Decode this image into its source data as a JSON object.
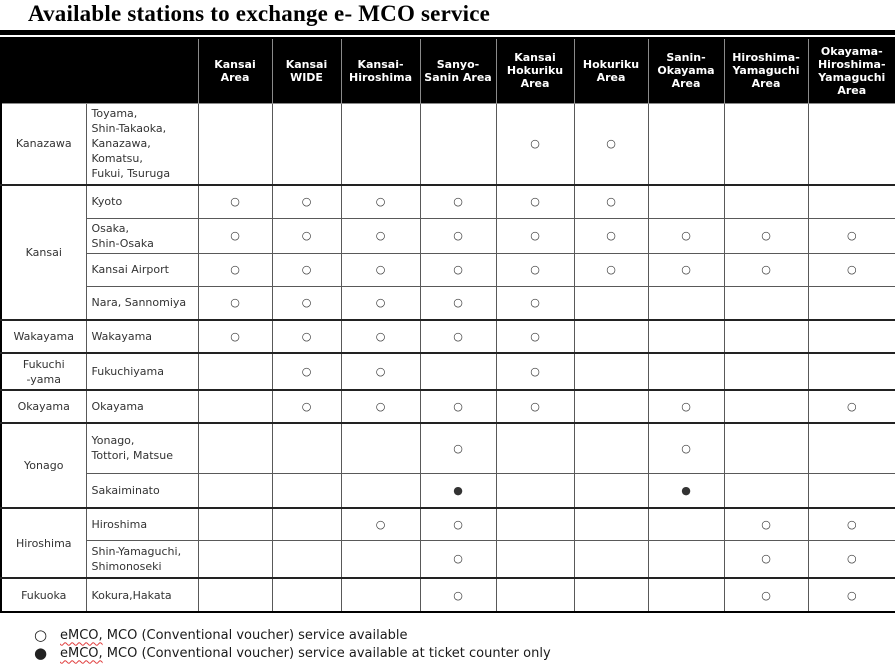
{
  "title": "Available stations to exchange e- MCO service",
  "colors": {
    "header_bg": "#000000",
    "header_text": "#ffffff",
    "grid_line": "#595959",
    "body_text": "#333333",
    "spellcheck_underline": "#e03b3b"
  },
  "table": {
    "columns": [
      "Kansai Area",
      "Kansai WIDE",
      "Kansai-Hiroshima",
      "Sanyo-Sanin Area",
      "Kansai Hokuriku Area",
      "Hokuriku Area",
      "Sanin-Okayama Area",
      "Hiroshima-Yamaguchi Area",
      "Okayama-Hiroshima-Yamaguchi Area"
    ],
    "groups": [
      {
        "label": "Kanazawa",
        "rows": [
          {
            "station": "Toyama,\nShin-Takaoka,\nKanazawa,\nKomatsu,\nFukui, Tsuruga",
            "marks": [
              "",
              "",
              "",
              "",
              "○",
              "○",
              "",
              "",
              ""
            ]
          }
        ]
      },
      {
        "label": "Kansai",
        "rows": [
          {
            "station": "Kyoto",
            "marks": [
              "○",
              "○",
              "○",
              "○",
              "○",
              "○",
              "",
              "",
              ""
            ]
          },
          {
            "station": "Osaka,\nShin-Osaka",
            "marks": [
              "○",
              "○",
              "○",
              "○",
              "○",
              "○",
              "○",
              "○",
              "○"
            ]
          },
          {
            "station": "Kansai Airport",
            "marks": [
              "○",
              "○",
              "○",
              "○",
              "○",
              "○",
              "○",
              "○",
              "○"
            ]
          },
          {
            "station": "Nara, Sannomiya",
            "marks": [
              "○",
              "○",
              "○",
              "○",
              "○",
              "",
              "",
              "",
              ""
            ]
          }
        ]
      },
      {
        "label": "Wakayama",
        "rows": [
          {
            "station": "Wakayama",
            "marks": [
              "○",
              "○",
              "○",
              "○",
              "○",
              "",
              "",
              "",
              ""
            ]
          }
        ]
      },
      {
        "label": "Fukuchi\n-yama",
        "rows": [
          {
            "station": "Fukuchiyama",
            "marks": [
              "",
              "○",
              "○",
              "",
              "○",
              "",
              "",
              "",
              ""
            ]
          }
        ]
      },
      {
        "label": "Okayama",
        "rows": [
          {
            "station": "Okayama",
            "marks": [
              "",
              "○",
              "○",
              "○",
              "○",
              "",
              "○",
              "",
              "○"
            ]
          }
        ]
      },
      {
        "label": "Yonago",
        "rows": [
          {
            "station": "Yonago,\nTottori, Matsue",
            "marks": [
              "",
              "",
              "",
              "○",
              "",
              "",
              "○",
              "",
              ""
            ]
          },
          {
            "station": "Sakaiminato",
            "marks": [
              "",
              "",
              "",
              "●",
              "",
              "",
              "●",
              "",
              ""
            ]
          }
        ]
      },
      {
        "label": "Hiroshima",
        "rows": [
          {
            "station": "Hiroshima",
            "marks": [
              "",
              "",
              "○",
              "○",
              "",
              "",
              "",
              "○",
              "○"
            ]
          },
          {
            "station": "Shin-Yamaguchi,\nShimonoseki",
            "marks": [
              "",
              "",
              "",
              "○",
              "",
              "",
              "",
              "○",
              "○"
            ]
          }
        ]
      },
      {
        "label": "Fukuoka",
        "rows": [
          {
            "station": "Kokura,Hakata",
            "marks": [
              "",
              "",
              "",
              "○",
              "",
              "",
              "",
              "○",
              "○"
            ]
          }
        ]
      }
    ]
  },
  "legend": [
    {
      "symbol": "○",
      "prefix": "eMCO,",
      "text": " MCO (Conventional voucher) service available"
    },
    {
      "symbol": "●",
      "prefix": "eMCO,",
      "text": " MCO (Conventional voucher) service available at ticket counter only"
    }
  ]
}
